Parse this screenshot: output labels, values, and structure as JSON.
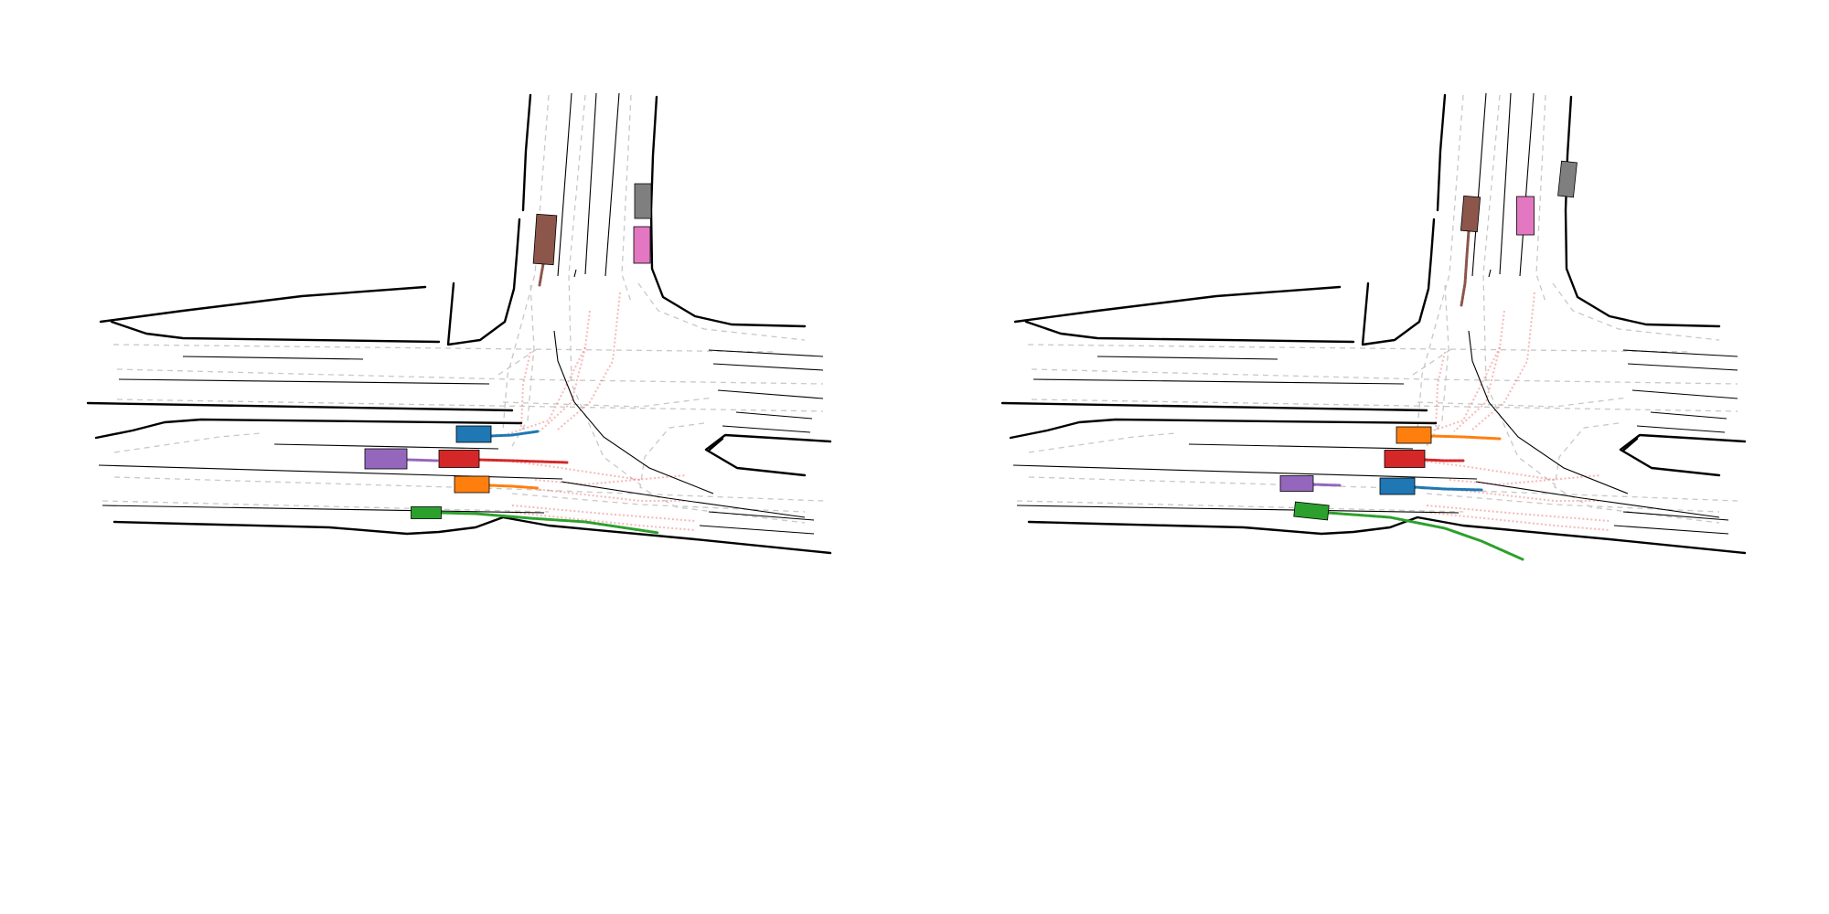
{
  "colors": {
    "blue": "#1f77b4",
    "orange": "#ff7f0e",
    "green": "#2ca02c",
    "red": "#d62728",
    "purple": "#9467bd",
    "brown": "#8c564b",
    "pink": "#e377c2",
    "gray": "#7f7f7f",
    "route": "#f08080",
    "lane_dash": "#c8c8c8",
    "road_edge": "#000000"
  },
  "scenes": [
    {
      "id": "left",
      "agents": [
        {
          "id": "blue",
          "color": "blue"
        },
        {
          "id": "orange",
          "color": "orange"
        },
        {
          "id": "green",
          "color": "green"
        },
        {
          "id": "red",
          "color": "red"
        },
        {
          "id": "purple",
          "color": "purple"
        },
        {
          "id": "brown",
          "color": "brown"
        },
        {
          "id": "pink",
          "color": "pink"
        },
        {
          "id": "gray",
          "color": "gray"
        }
      ]
    },
    {
      "id": "right",
      "agents": [
        {
          "id": "blue",
          "color": "blue"
        },
        {
          "id": "orange",
          "color": "orange"
        },
        {
          "id": "green",
          "color": "green"
        },
        {
          "id": "red",
          "color": "red"
        },
        {
          "id": "purple",
          "color": "purple"
        },
        {
          "id": "brown",
          "color": "brown"
        },
        {
          "id": "pink",
          "color": "pink"
        },
        {
          "id": "gray",
          "color": "gray"
        }
      ]
    }
  ]
}
